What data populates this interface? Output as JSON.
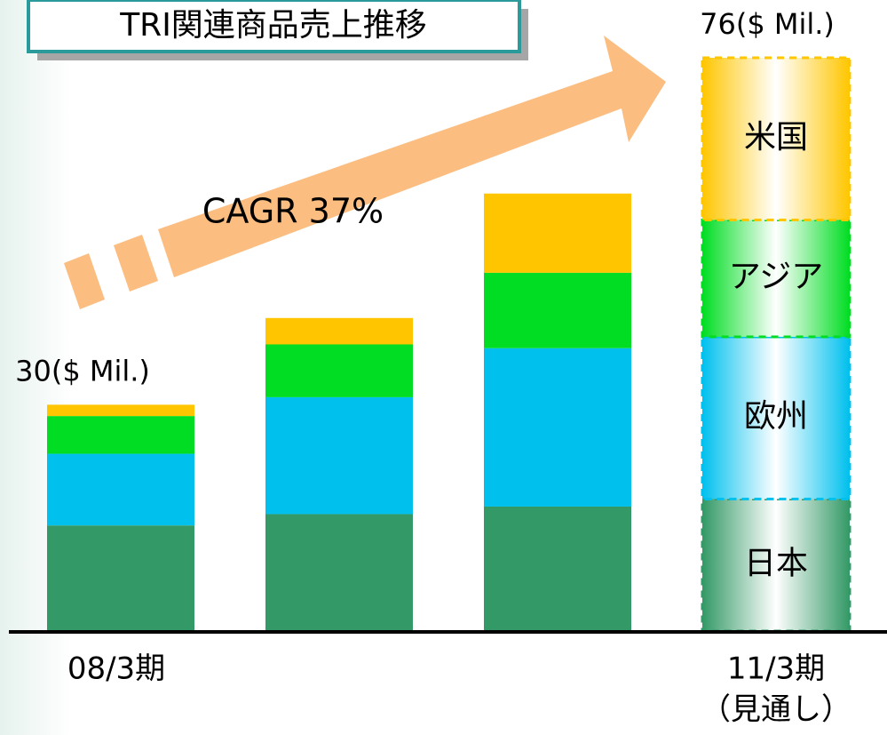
{
  "chart_data": {
    "type": "stacked_bar",
    "title": "TRI関連商品売上推移",
    "annotation": "CAGR 37%",
    "categories": [
      "08/3期",
      null,
      null,
      "11/3期"
    ],
    "forecast_note": "（見通し）",
    "series": [
      {
        "name": "日本",
        "color": "#339966",
        "values": [
          14,
          15.5,
          16.5,
          17.5
        ]
      },
      {
        "name": "欧州",
        "color": "#00c0ee",
        "values": [
          9.5,
          15.5,
          21,
          21.5
        ]
      },
      {
        "name": "アジア",
        "color": "#00dd22",
        "values": [
          5,
          7,
          10,
          15.5
        ]
      },
      {
        "name": "米国",
        "color": "#ffc600",
        "values": [
          1.5,
          3.5,
          10.5,
          21.5
        ]
      }
    ],
    "totals": [
      30,
      null,
      null,
      76
    ],
    "total_labels": [
      "30($ Mil.)",
      null,
      null,
      "76($ Mil.)"
    ],
    "ylim": [
      0,
      76
    ]
  }
}
